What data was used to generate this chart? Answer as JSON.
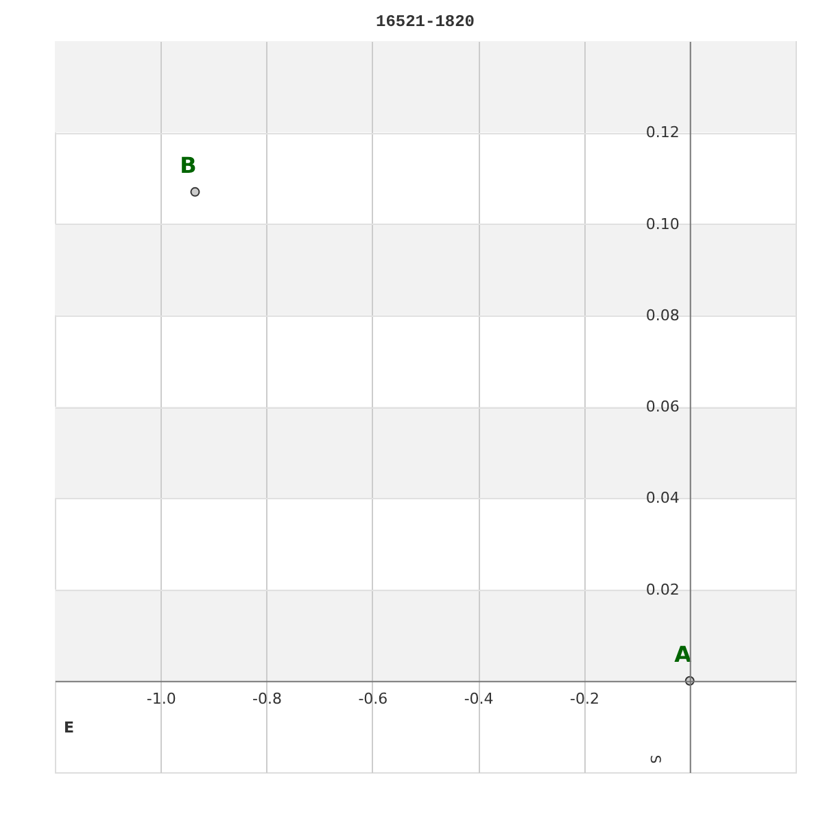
{
  "chart_data": {
    "type": "scatter",
    "title": "16521-1820",
    "xlabel": "E",
    "ylabel": "S",
    "x": [
      0,
      -0.935
    ],
    "values": [
      0,
      0.107
    ],
    "color": "#cccccc",
    "marker": "circle",
    "xlim": [
      -1.2,
      0.2
    ],
    "ylim": [
      -0.02,
      0.14
    ],
    "xticks": [
      {
        "value": -1.0,
        "label": "-1.0"
      },
      {
        "value": -0.8,
        "label": "-0.8"
      },
      {
        "value": -0.6,
        "label": "-0.6"
      },
      {
        "value": -0.4,
        "label": "-0.4"
      },
      {
        "value": -0.2,
        "label": "-0.2"
      }
    ],
    "yticks": [
      0.02,
      0.04,
      0.06,
      0.08,
      {
        "value": 0.1,
        "label": "0.10"
      },
      0.12
    ],
    "grid": true,
    "bands": [
      {
        "axis": "y",
        "from": 0.12,
        "to": 0.14,
        "color": "#f2f2f2"
      },
      {
        "axis": "y",
        "from": 0.08,
        "to": 0.1,
        "color": "#f2f2f2"
      },
      {
        "axis": "y",
        "from": 0.04,
        "to": 0.06,
        "color": "#f2f2f2"
      },
      {
        "axis": "y",
        "from": 0,
        "to": 0.02,
        "color": "#f2f2f2"
      }
    ],
    "annotations": [
      {
        "text": "A",
        "x": 0,
        "y": 0
      },
      {
        "text": "B",
        "x": -0.935,
        "y": 0.107
      }
    ]
  }
}
